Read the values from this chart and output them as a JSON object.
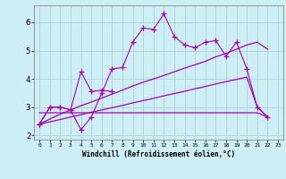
{
  "background_color": "#cdeef5",
  "grid_color": "#aacccc",
  "line_color": "#aa00aa",
  "x_label": "Windchill (Refroidissement éolien,°C)",
  "ylabel_ticks": [
    2,
    3,
    4,
    5,
    6
  ],
  "xlim": [
    -0.5,
    23.5
  ],
  "ylim": [
    1.85,
    6.6
  ],
  "xticks": [
    0,
    1,
    2,
    3,
    4,
    5,
    6,
    7,
    8,
    9,
    10,
    11,
    12,
    13,
    14,
    15,
    16,
    17,
    18,
    19,
    20,
    21,
    22,
    23
  ],
  "series1_x": [
    0,
    1,
    2,
    3,
    4,
    5,
    6,
    7,
    8,
    9,
    10,
    11,
    12,
    13,
    14,
    15,
    16,
    17,
    18,
    19,
    20,
    21,
    22
  ],
  "series1_y": [
    2.4,
    3.0,
    3.0,
    2.9,
    2.2,
    2.65,
    3.5,
    4.35,
    4.4,
    5.3,
    5.8,
    5.75,
    6.3,
    5.5,
    5.2,
    5.1,
    5.3,
    5.35,
    4.8,
    5.3,
    4.35,
    3.0,
    2.65
  ],
  "series2_x": [
    0,
    1,
    2,
    3,
    4,
    5,
    6,
    7
  ],
  "series2_y": [
    2.4,
    3.0,
    3.0,
    2.9,
    4.25,
    3.55,
    3.6,
    3.55
  ],
  "series3_x": [
    0,
    20,
    21,
    22
  ],
  "series3_y": [
    2.8,
    2.8,
    2.8,
    2.65
  ],
  "series4_x": [
    0,
    1,
    2,
    3,
    4,
    5,
    6,
    7,
    8,
    9,
    10,
    11,
    12,
    13,
    14,
    15,
    16,
    17,
    18,
    19,
    20,
    21,
    22
  ],
  "series4_y": [
    2.4,
    2.58,
    2.75,
    2.9,
    3.05,
    3.18,
    3.32,
    3.46,
    3.6,
    3.75,
    3.88,
    4.0,
    4.12,
    4.25,
    4.38,
    4.5,
    4.62,
    4.78,
    4.9,
    5.05,
    5.2,
    5.3,
    5.05
  ],
  "series5_x": [
    0,
    1,
    2,
    3,
    4,
    5,
    6,
    7,
    8,
    9,
    10,
    11,
    12,
    13,
    14,
    15,
    16,
    17,
    18,
    19,
    20,
    21,
    22
  ],
  "series5_y": [
    2.4,
    2.48,
    2.56,
    2.65,
    2.73,
    2.82,
    2.9,
    2.98,
    3.06,
    3.15,
    3.23,
    3.31,
    3.4,
    3.48,
    3.56,
    3.65,
    3.73,
    3.82,
    3.9,
    3.98,
    4.06,
    3.0,
    2.65
  ]
}
